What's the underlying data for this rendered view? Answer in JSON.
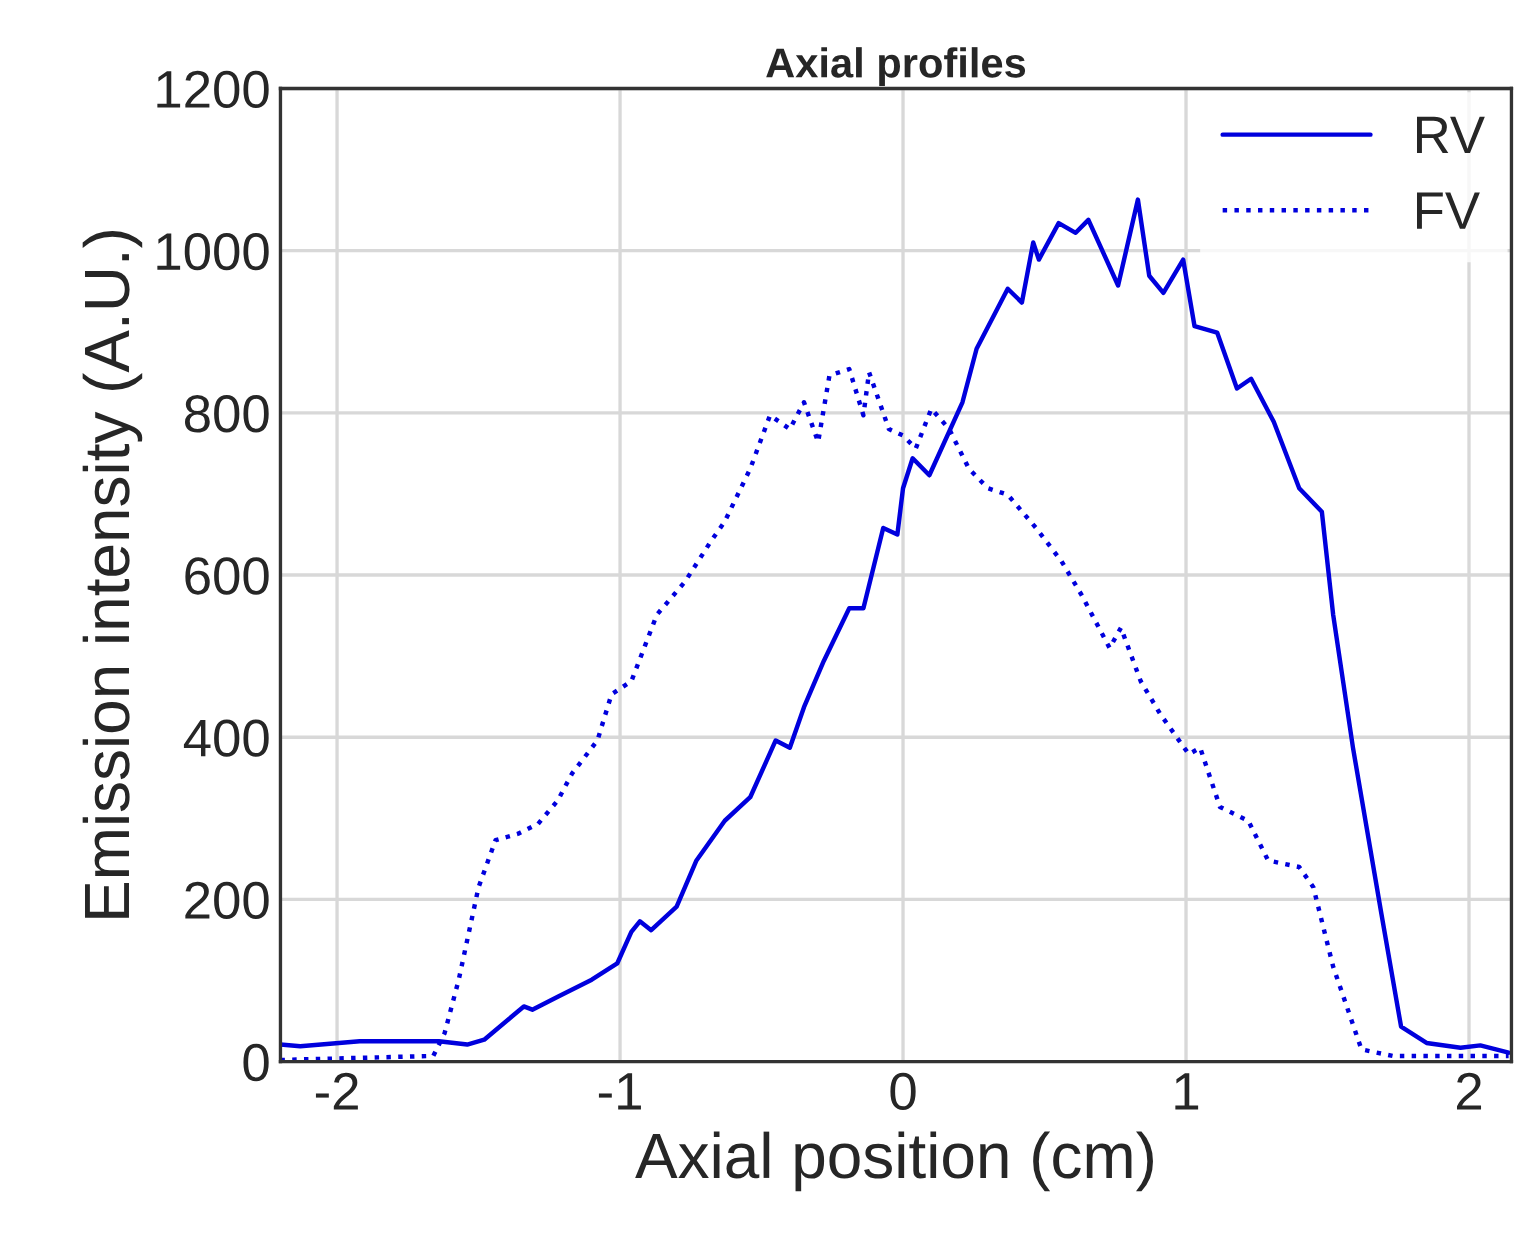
{
  "chart_data": {
    "type": "line",
    "title": "Axial profiles",
    "xlabel": "Axial position (cm)",
    "ylabel": "Emission intensity (A.U.)",
    "xlim": [
      -2.2,
      2.15
    ],
    "xticks": [
      -2,
      -1,
      0,
      1,
      2
    ],
    "ylim": [
      0,
      1200
    ],
    "yticks": [
      0,
      200,
      400,
      600,
      800,
      1000,
      1200
    ],
    "grid": true,
    "legend": "top right",
    "marker": "none",
    "series": [
      {
        "name": "RV",
        "color": "#0000dd",
        "line_style": "solid",
        "x": [
          -2.2,
          -2.13,
          -1.92,
          -1.64,
          -1.54,
          -1.48,
          -1.34,
          -1.31,
          -1.22,
          -1.1,
          -1.01,
          -0.96,
          -0.93,
          -0.89,
          -0.8,
          -0.73,
          -0.63,
          -0.54,
          -0.45,
          -0.4,
          -0.35,
          -0.28,
          -0.19,
          -0.14,
          -0.07,
          -0.02,
          0.0,
          0.034,
          0.093,
          0.21,
          0.26,
          0.37,
          0.42,
          0.46,
          0.48,
          0.55,
          0.61,
          0.655,
          0.76,
          0.83,
          0.87,
          0.92,
          0.99,
          1.03,
          1.11,
          1.18,
          1.23,
          1.31,
          1.4,
          1.48,
          1.52,
          1.59,
          1.69,
          1.76,
          1.85,
          1.97,
          2.04,
          2.14
        ],
        "values": [
          21,
          19,
          25,
          25,
          21,
          27,
          68,
          64,
          80,
          101,
          121,
          160,
          173,
          162,
          191,
          248,
          297,
          326,
          396,
          387,
          437,
          494,
          559,
          559,
          658,
          650,
          707,
          744,
          723,
          813,
          879,
          953,
          936,
          1010,
          989,
          1034,
          1022,
          1038,
          957,
          1063,
          969,
          948,
          989,
          907,
          899,
          830,
          842,
          789,
          707,
          678,
          551,
          387,
          183,
          43,
          23,
          17,
          20,
          11
        ]
      },
      {
        "name": "FV",
        "color": "#0000dd",
        "line_style": "dotted",
        "x": [
          -2.2,
          -1.66,
          -1.62,
          -1.57,
          -1.5,
          -1.44,
          -1.36,
          -1.29,
          -1.22,
          -1.17,
          -1.08,
          -1.03,
          -0.96,
          -0.87,
          -0.77,
          -0.68,
          -0.63,
          -0.54,
          -0.47,
          -0.4,
          -0.35,
          -0.3,
          -0.26,
          -0.19,
          -0.14,
          -0.12,
          -0.05,
          0.0,
          0.045,
          0.1,
          0.163,
          0.233,
          0.3,
          0.37,
          0.47,
          0.56,
          0.63,
          0.73,
          0.77,
          0.84,
          0.91,
          1.01,
          1.05,
          1.12,
          1.22,
          1.29,
          1.4,
          1.45,
          1.52,
          1.62,
          1.73,
          2.14
        ],
        "values": [
          2,
          7,
          35,
          101,
          215,
          273,
          281,
          293,
          322,
          355,
          396,
          453,
          469,
          551,
          592,
          641,
          666,
          731,
          797,
          780,
          813,
          764,
          846,
          854,
          797,
          850,
          780,
          772,
          756,
          805,
          780,
          731,
          707,
          699,
          658,
          617,
          576,
          510,
          535,
          469,
          428,
          379,
          387,
          314,
          297,
          248,
          240,
          215,
          117,
          15,
          7,
          7
        ]
      }
    ]
  }
}
